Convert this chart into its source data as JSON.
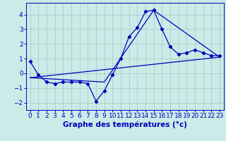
{
  "xlabel": "Graphe des températures (°c)",
  "background_color": "#cceae7",
  "grid_color": "#aad4d0",
  "line_color": "#0000bb",
  "x_ticks": [
    0,
    1,
    2,
    3,
    4,
    5,
    6,
    7,
    8,
    9,
    10,
    11,
    12,
    13,
    14,
    15,
    16,
    17,
    18,
    19,
    20,
    21,
    22,
    23
  ],
  "ylim": [
    -2.5,
    4.8
  ],
  "xlim": [
    -0.5,
    23.5
  ],
  "series1_x": [
    0,
    1,
    2,
    3,
    4,
    5,
    6,
    7,
    8,
    9,
    10,
    11,
    12,
    13,
    14,
    15,
    16,
    17,
    18,
    19,
    20,
    21,
    22,
    23
  ],
  "series1_y": [
    0.8,
    -0.1,
    -0.6,
    -0.7,
    -0.6,
    -0.6,
    -0.6,
    -0.7,
    -1.9,
    -1.2,
    -0.1,
    1.0,
    2.5,
    3.1,
    4.2,
    4.3,
    3.0,
    1.8,
    1.3,
    1.4,
    1.6,
    1.4,
    1.2,
    1.2
  ],
  "series2_x": [
    0,
    23
  ],
  "series2_y": [
    -0.3,
    1.1
  ],
  "series3_x": [
    0,
    9,
    15,
    23
  ],
  "series3_y": [
    -0.3,
    -0.6,
    4.3,
    1.1
  ],
  "yticks": [
    -2,
    -1,
    0,
    1,
    2,
    3,
    4
  ],
  "tick_fontsize": 6.5,
  "xlabel_fontsize": 7.5
}
